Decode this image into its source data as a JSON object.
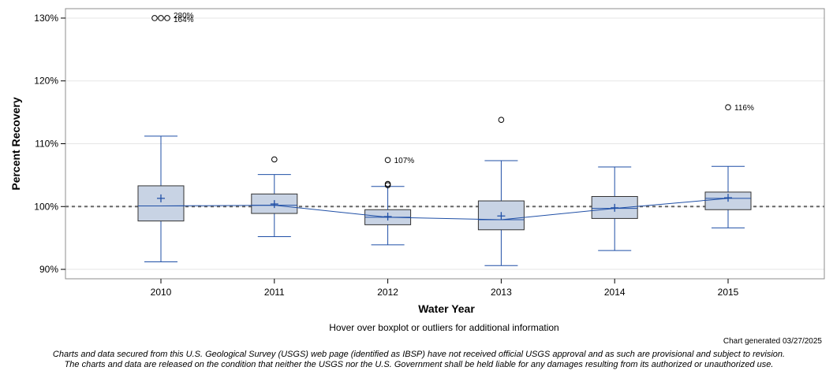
{
  "chart_data": {
    "type": "boxplot",
    "title": "",
    "xlabel": "Water Year",
    "ylabel": "Percent Recovery",
    "ylim": [
      88.5,
      131.5
    ],
    "yticks": [
      90,
      100,
      110,
      120,
      130
    ],
    "ytick_labels": [
      "90%",
      "100%",
      "110%",
      "120%",
      "130%"
    ],
    "reference_line": 100,
    "grid": true,
    "categories": [
      "2010",
      "2011",
      "2012",
      "2013",
      "2014",
      "2015"
    ],
    "boxes": [
      {
        "year": "2010",
        "whisker_low": 91.2,
        "q1": 97.7,
        "median": 100.1,
        "q3": 103.3,
        "whisker_high": 111.2,
        "mean": 101.3
      },
      {
        "year": "2011",
        "whisker_low": 95.2,
        "q1": 98.9,
        "median": 100.2,
        "q3": 102.0,
        "whisker_high": 105.1,
        "mean": 100.4
      },
      {
        "year": "2012",
        "whisker_low": 93.9,
        "q1": 97.1,
        "median": 98.3,
        "q3": 99.5,
        "whisker_high": 103.2,
        "mean": 98.4
      },
      {
        "year": "2013",
        "whisker_low": 90.6,
        "q1": 96.3,
        "median": 97.9,
        "q3": 100.9,
        "whisker_high": 107.3,
        "mean": 98.5
      },
      {
        "year": "2014",
        "whisker_low": 93.0,
        "q1": 98.1,
        "median": 99.7,
        "q3": 101.6,
        "whisker_high": 106.3,
        "mean": 99.8
      },
      {
        "year": "2015",
        "whisker_low": 96.6,
        "q1": 99.5,
        "median": 101.3,
        "q3": 102.3,
        "whisker_high": 106.4,
        "mean": 101.4
      }
    ],
    "outliers": [
      {
        "year": "2010",
        "value": 130,
        "offset": -8
      },
      {
        "year": "2010",
        "value": 130,
        "offset": 0
      },
      {
        "year": "2010",
        "value": 130,
        "offset": 8
      },
      {
        "year": "2011",
        "value": 107.5,
        "offset": 0
      },
      {
        "year": "2012",
        "value": 107.4,
        "offset": 0
      },
      {
        "year": "2012",
        "value": 103.6,
        "offset": 0
      },
      {
        "year": "2012",
        "value": 103.4,
        "offset": 0
      },
      {
        "year": "2013",
        "value": 113.8,
        "offset": 0
      },
      {
        "year": "2015",
        "value": 115.8,
        "offset": 0
      }
    ],
    "outlier_labels": [
      {
        "year": "2010",
        "value": 130,
        "label": "280%",
        "dy": -4
      },
      {
        "year": "2010",
        "value": 130,
        "label": "164%",
        "dy": 1
      },
      {
        "year": "2012",
        "value": 107.4,
        "label": "107%",
        "dy": 0
      },
      {
        "year": "2015",
        "value": 115.8,
        "label": "116%",
        "dy": 0
      }
    ],
    "colors": {
      "box_fill": "#c8d3e4",
      "box_stroke": "#333333",
      "whisker": "#1f4fa6",
      "median_line": "#1f4fa6",
      "mean_marker": "#1f4fa6",
      "reference_line": "#666666",
      "grid": "#e6e6e6"
    }
  },
  "footer": {
    "hover_note": "Hover over boxplot or outliers for additional information",
    "generated": "Chart generated 03/27/2025",
    "disclaimer_1": "Charts and data secured from this U.S. Geological Survey (USGS) web page (identified as IBSP) have not received official USGS approval and as such are provisional and subject to revision.",
    "disclaimer_2": "The charts and data are released on the condition that neither the USGS nor the U.S. Government shall be held liable for any damages resulting from its authorized or unauthorized use."
  }
}
